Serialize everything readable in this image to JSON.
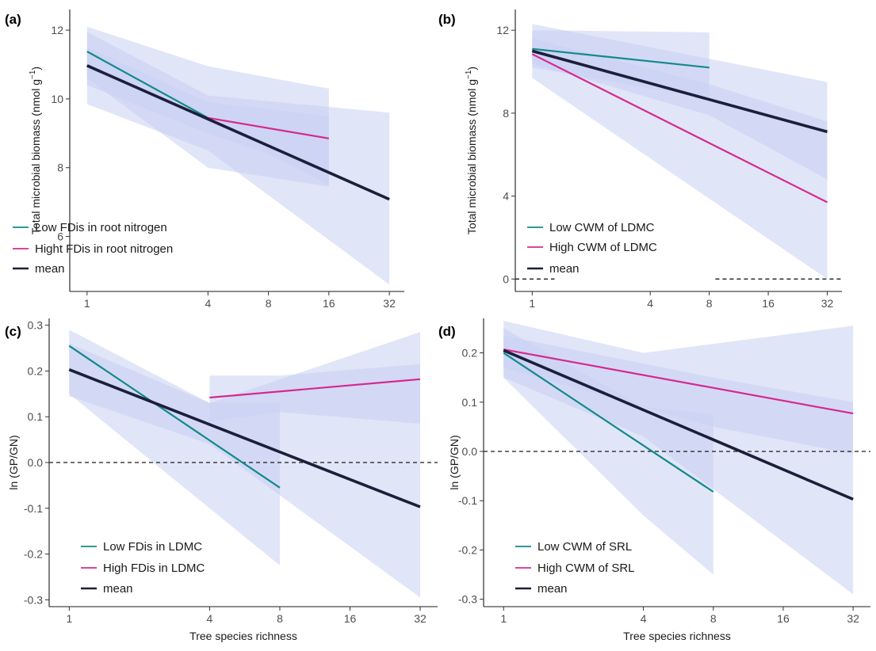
{
  "colors": {
    "low": "#138a8a",
    "high": "#d6298e",
    "mean": "#1c1f3a",
    "band": "#c9d0f3",
    "axis": "#1a1a1a",
    "tick_text": "#4d4d4d",
    "zero_line": "#1a1a1a"
  },
  "chart_data": [
    {
      "label": "(a)",
      "type": "line",
      "xscale": "log2",
      "xlabel": "",
      "ylabel": "Total microbial biomass (nmol g",
      "ylabel_exp": "−1",
      "ylabel_close": ")",
      "xlim": [
        0.82,
        38
      ],
      "ylim": [
        4.4,
        12.6
      ],
      "xticks": [
        1,
        4,
        8,
        16,
        32
      ],
      "xticklabels": [
        "1",
        "4",
        "8",
        "16",
        "32"
      ],
      "yticks": [
        6,
        8,
        10,
        12
      ],
      "yticklabels": [
        "6",
        "8",
        "10",
        "12"
      ],
      "zero_line": null,
      "legend_position": "bottom-left",
      "legend": [
        {
          "key": "low",
          "text": "Low FDis in root nitrogen"
        },
        {
          "key": "high",
          "text": "Hight FDis in root nitrogen"
        },
        {
          "key": "mean",
          "text": "mean"
        }
      ],
      "series": [
        {
          "key": "low",
          "x": [
            1,
            4
          ],
          "y": [
            11.38,
            9.45
          ]
        },
        {
          "key": "high",
          "x": [
            4,
            16
          ],
          "y": [
            9.45,
            8.85
          ]
        },
        {
          "key": "mean",
          "x": [
            1,
            32
          ],
          "y": [
            10.97,
            7.08
          ]
        }
      ],
      "bands": [
        {
          "x": [
            1,
            4,
            32
          ],
          "upper": [
            11.95,
            10.1,
            9.6
          ],
          "lower": [
            9.85,
            8.5,
            4.6
          ]
        },
        {
          "x": [
            1,
            4,
            16
          ],
          "upper": [
            12.1,
            10.95,
            10.3
          ],
          "lower": [
            10.6,
            8.0,
            7.45
          ]
        },
        {
          "x": [
            1,
            4,
            8,
            16
          ],
          "upper": [
            11.5,
            9.9,
            9.7,
            9.5
          ],
          "lower": [
            10.4,
            9.0,
            8.4,
            7.5
          ]
        }
      ]
    },
    {
      "label": "(b)",
      "type": "line",
      "xscale": "log2",
      "xlabel": "",
      "ylabel": "Total microbial biomass (nmol g",
      "ylabel_exp": "−1",
      "ylabel_close": ")",
      "xlim": [
        0.82,
        38
      ],
      "ylim": [
        -0.6,
        13.0
      ],
      "xticks": [
        1,
        4,
        8,
        16,
        32
      ],
      "xticklabels": [
        "1",
        "4",
        "8",
        "16",
        "32"
      ],
      "yticks": [
        0,
        4,
        8,
        12
      ],
      "yticklabels": [
        "0",
        "4",
        "8",
        "12"
      ],
      "zero_line": {
        "y": 0,
        "segments": [
          [
            0.82,
            1.3
          ],
          [
            8.6,
            38
          ]
        ]
      },
      "legend_position": "bottom-left",
      "legend": [
        {
          "key": "low",
          "text": "Low CWM of LDMC"
        },
        {
          "key": "high",
          "text": "High CWM of LDMC"
        },
        {
          "key": "mean",
          "text": "mean"
        }
      ],
      "series": [
        {
          "key": "low",
          "x": [
            1,
            8
          ],
          "y": [
            11.1,
            10.2
          ]
        },
        {
          "key": "high",
          "x": [
            1,
            32
          ],
          "y": [
            10.85,
            3.7
          ]
        },
        {
          "key": "mean",
          "x": [
            1,
            32
          ],
          "y": [
            11.0,
            7.1
          ]
        }
      ],
      "bands": [
        {
          "x": [
            1,
            32
          ],
          "upper": [
            12.3,
            9.5
          ],
          "lower": [
            9.7,
            0.0
          ]
        },
        {
          "x": [
            1,
            8
          ],
          "upper": [
            12.0,
            11.9
          ],
          "lower": [
            10.2,
            8.7
          ]
        },
        {
          "x": [
            1,
            8,
            32
          ],
          "upper": [
            11.6,
            9.4,
            7.6
          ],
          "lower": [
            10.4,
            7.9,
            4.8
          ]
        }
      ]
    },
    {
      "label": "(c)",
      "type": "line",
      "xscale": "log2",
      "xlabel": "Tree species richness",
      "ylabel": "ln (GP/GN)",
      "ylabel_exp": "",
      "ylabel_close": "",
      "xlim": [
        0.82,
        38
      ],
      "ylim": [
        -0.315,
        0.315
      ],
      "xticks": [
        1,
        4,
        8,
        16,
        32
      ],
      "xticklabels": [
        "1",
        "4",
        "8",
        "16",
        "32"
      ],
      "yticks": [
        -0.3,
        -0.2,
        -0.1,
        0.0,
        0.1,
        0.2,
        0.3
      ],
      "yticklabels": [
        "-0.3",
        "-0.2",
        "-0.1",
        "0.0",
        "0.1",
        "0.2",
        "0.3"
      ],
      "zero_line": {
        "y": 0,
        "segments": [
          [
            0.82,
            38
          ]
        ]
      },
      "legend_position": "bottom-left",
      "legend": [
        {
          "key": "low",
          "text": "Low FDis in LDMC"
        },
        {
          "key": "high",
          "text": "High FDis in LDMC"
        },
        {
          "key": "mean",
          "text": "mean"
        }
      ],
      "series": [
        {
          "key": "low",
          "x": [
            1,
            8
          ],
          "y": [
            0.255,
            -0.055
          ]
        },
        {
          "key": "high",
          "x": [
            4,
            32
          ],
          "y": [
            0.142,
            0.182
          ]
        },
        {
          "key": "mean",
          "x": [
            1,
            32
          ],
          "y": [
            0.203,
            -0.097
          ]
        }
      ],
      "bands": [
        {
          "x": [
            1,
            4,
            32
          ],
          "upper": [
            0.26,
            0.13,
            0.285
          ],
          "lower": [
            0.145,
            0.04,
            -0.295
          ]
        },
        {
          "x": [
            1,
            4,
            8
          ],
          "upper": [
            0.29,
            0.13,
            0.13
          ],
          "lower": [
            0.15,
            -0.1,
            -0.225
          ]
        },
        {
          "x": [
            4,
            8,
            32
          ],
          "upper": [
            0.19,
            0.19,
            0.215
          ],
          "lower": [
            0.09,
            0.11,
            0.085
          ]
        }
      ]
    },
    {
      "label": "(d)",
      "type": "line",
      "xscale": "log2",
      "xlabel": "Tree species richness",
      "ylabel": "ln (GP/GN)",
      "ylabel_exp": "",
      "ylabel_close": "",
      "xlim": [
        0.82,
        38
      ],
      "ylim": [
        -0.315,
        0.27
      ],
      "xticks": [
        1,
        4,
        8,
        16,
        32
      ],
      "xticklabels": [
        "1",
        "4",
        "8",
        "16",
        "32"
      ],
      "yticks": [
        -0.3,
        -0.2,
        -0.1,
        0.0,
        0.1,
        0.2
      ],
      "yticklabels": [
        "-0.3",
        "-0.2",
        "-0.1",
        "0.0",
        "0.1",
        "0.2"
      ],
      "zero_line": {
        "y": 0,
        "segments": [
          [
            0.82,
            38
          ]
        ]
      },
      "legend_position": "bottom-left",
      "legend": [
        {
          "key": "low",
          "text": "Low CWM of SRL"
        },
        {
          "key": "high",
          "text": "High CWM of SRL"
        },
        {
          "key": "mean",
          "text": "mean"
        }
      ],
      "series": [
        {
          "key": "low",
          "x": [
            1,
            8
          ],
          "y": [
            0.2,
            -0.082
          ]
        },
        {
          "key": "high",
          "x": [
            1,
            32
          ],
          "y": [
            0.207,
            0.077
          ]
        },
        {
          "key": "mean",
          "x": [
            1,
            32
          ],
          "y": [
            0.205,
            -0.097
          ]
        }
      ],
      "bands": [
        {
          "x": [
            1,
            4,
            32
          ],
          "upper": [
            0.265,
            0.2,
            0.255
          ],
          "lower": [
            0.15,
            0.03,
            -0.29
          ]
        },
        {
          "x": [
            1,
            4,
            8
          ],
          "upper": [
            0.25,
            0.09,
            0.075
          ],
          "lower": [
            0.15,
            -0.13,
            -0.25
          ]
        },
        {
          "x": [
            1,
            8,
            32
          ],
          "upper": [
            0.235,
            0.15,
            0.1
          ],
          "lower": [
            0.17,
            0.05,
            -0.005
          ]
        }
      ]
    }
  ]
}
